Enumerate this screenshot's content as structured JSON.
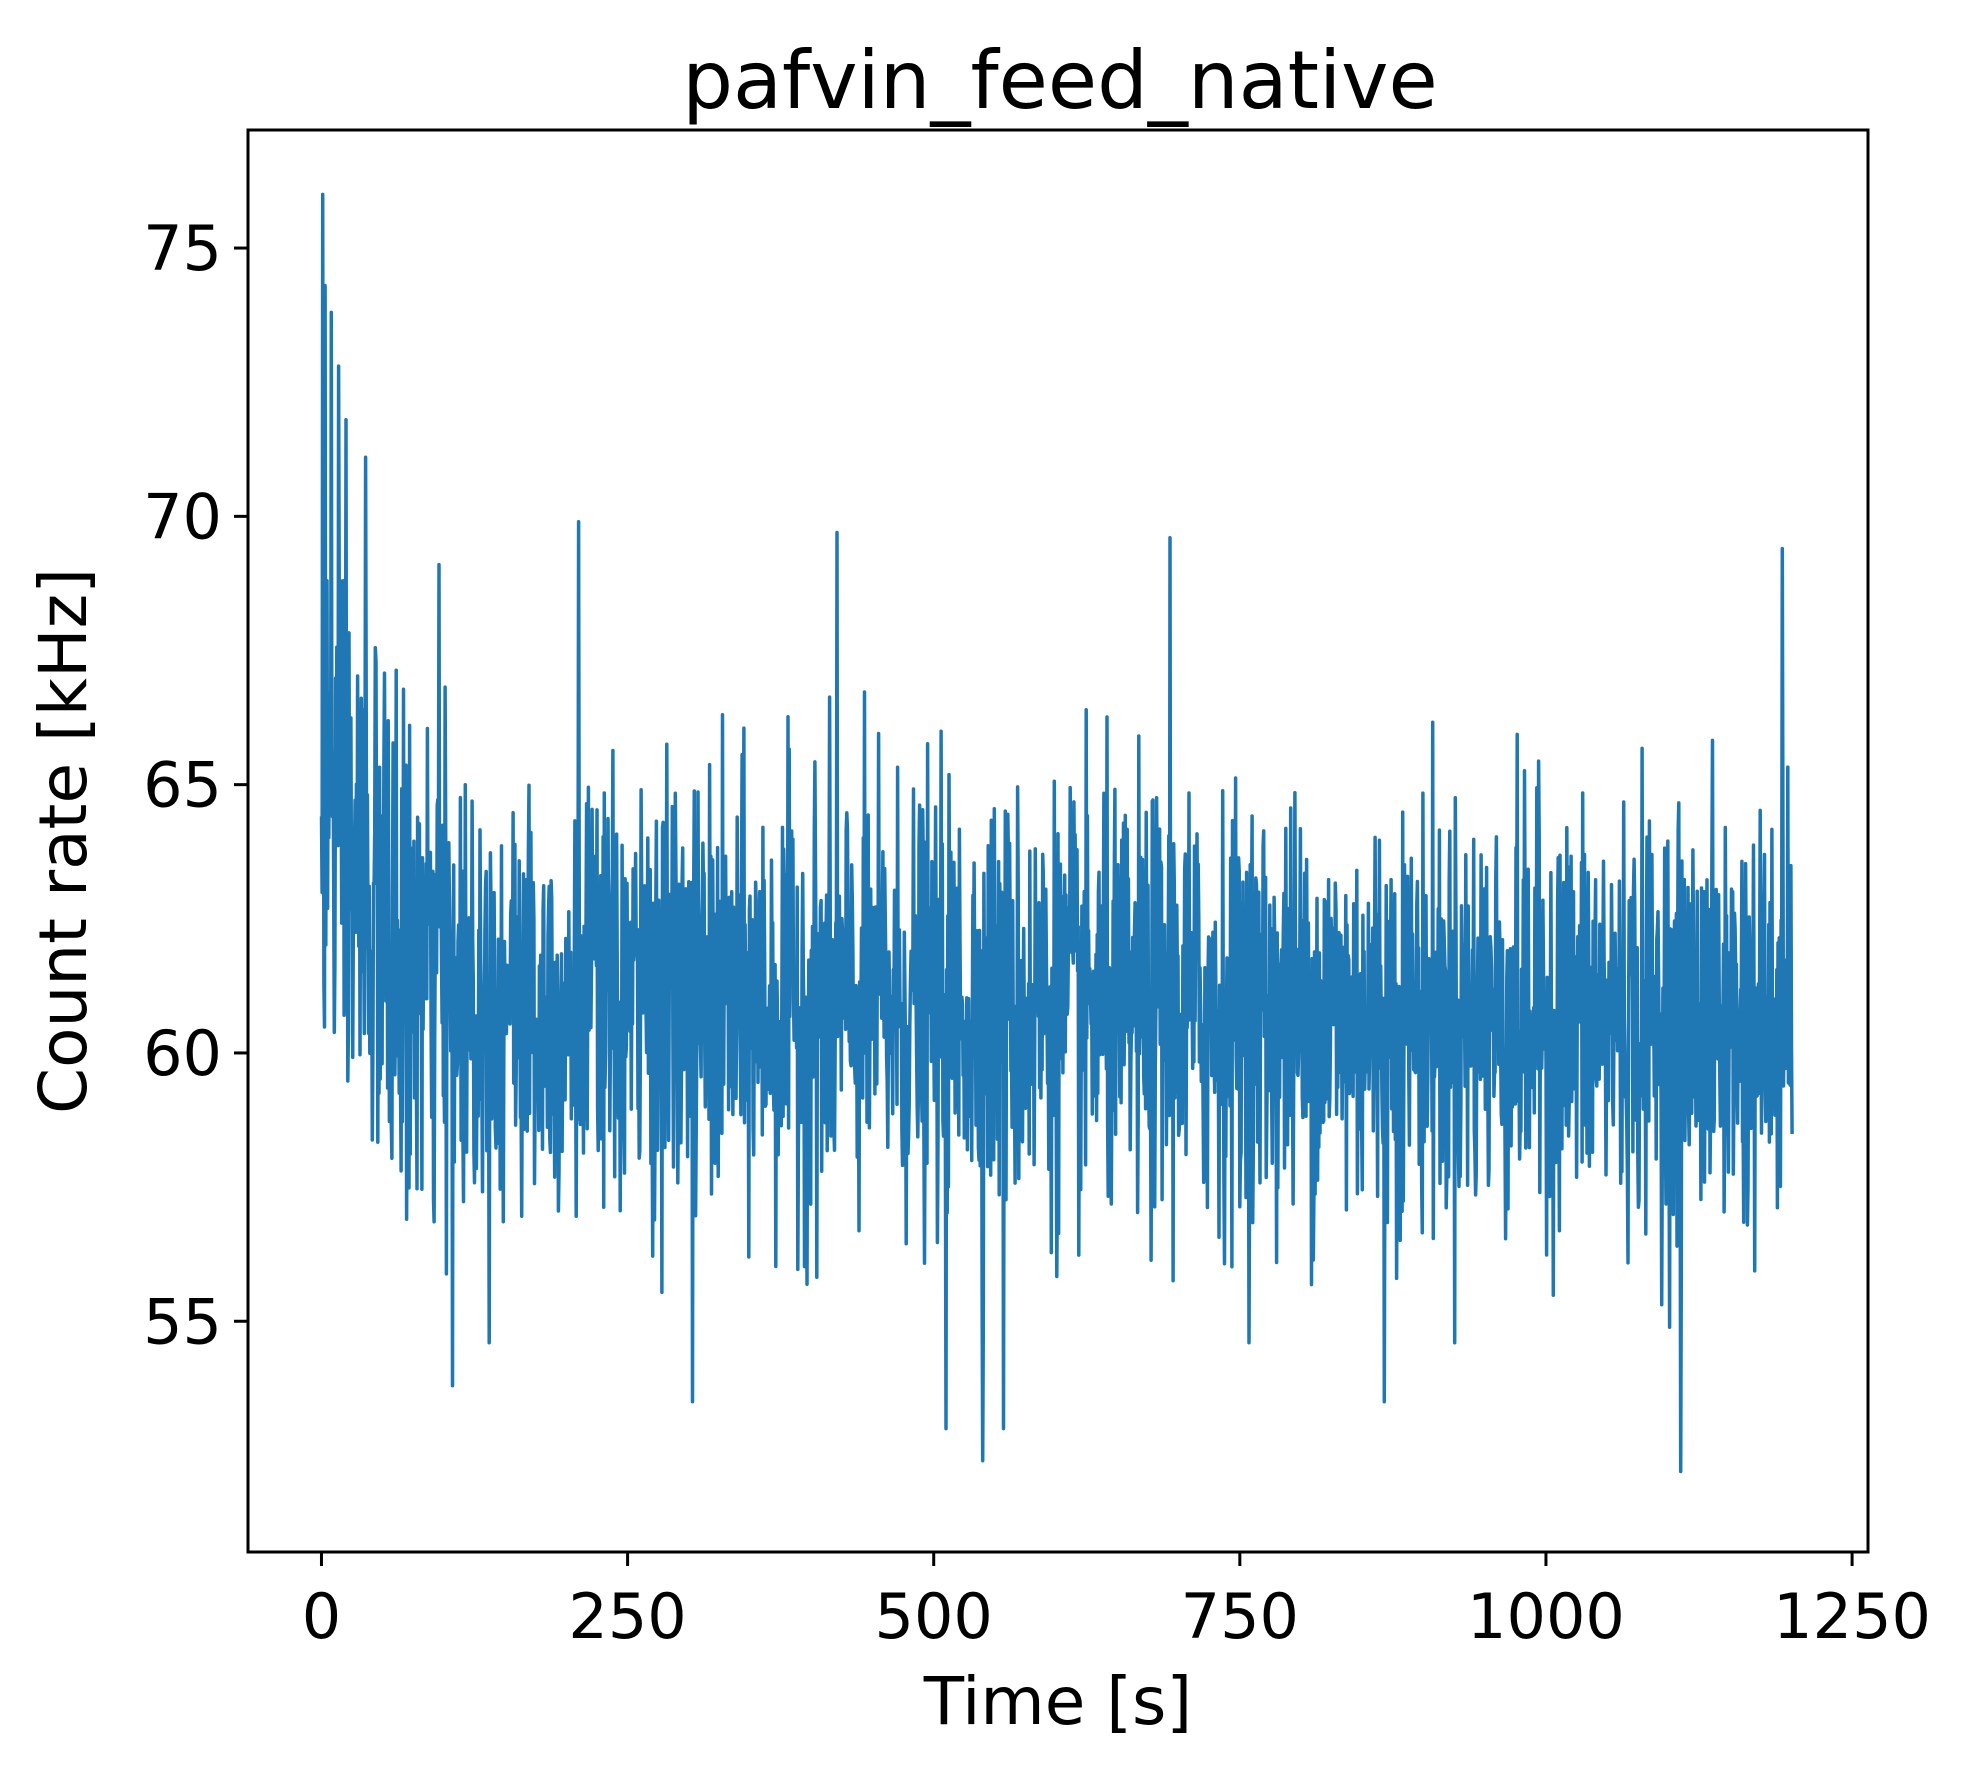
{
  "chart_data": {
    "type": "line",
    "title": "pafvin_feed_native",
    "xlabel": "Time [s]",
    "ylabel": "Count rate [kHz]",
    "xlim": [
      -60,
      1263
    ],
    "ylim": [
      50.7,
      77.2
    ],
    "xticks": [
      0,
      250,
      500,
      750,
      1000,
      1250
    ],
    "yticks": [
      55,
      60,
      65,
      70,
      75
    ],
    "xtick_labels": [
      "0",
      "250",
      "500",
      "750",
      "1000",
      "1250"
    ],
    "ytick_labels": [
      "55",
      "60",
      "65",
      "70",
      "75"
    ],
    "grid": false,
    "legend": "none",
    "series": [
      {
        "color": "#1f77b4",
        "sampling": {
          "x_start": 0,
          "x_end": 1201,
          "step_s": 0.5
        },
        "envelope": {
          "description_points": [
            {
              "x": 0,
              "mean": 65.5,
              "sd": 3.2
            },
            {
              "x": 20,
              "mean": 63.5,
              "sd": 2.8
            },
            {
              "x": 60,
              "mean": 61.8,
              "sd": 2.3
            },
            {
              "x": 120,
              "mean": 61.0,
              "sd": 2.0
            },
            {
              "x": 1201,
              "mean": 60.6,
              "sd": 1.9
            }
          ]
        },
        "extremes": [
          {
            "x": 1,
            "y": 76.0
          },
          {
            "x": 3,
            "y": 74.3
          },
          {
            "x": 8,
            "y": 73.8
          },
          {
            "x": 14,
            "y": 72.8
          },
          {
            "x": 20,
            "y": 71.8
          },
          {
            "x": 36,
            "y": 71.1
          },
          {
            "x": 96,
            "y": 69.1
          },
          {
            "x": 210,
            "y": 69.9
          },
          {
            "x": 421,
            "y": 69.7
          },
          {
            "x": 693,
            "y": 69.6
          },
          {
            "x": 1193,
            "y": 69.4
          },
          {
            "x": 540,
            "y": 52.4
          },
          {
            "x": 1110,
            "y": 52.2
          },
          {
            "x": 557,
            "y": 53.0
          },
          {
            "x": 510,
            "y": 53.0
          },
          {
            "x": 107,
            "y": 53.8
          },
          {
            "x": 303,
            "y": 53.5
          },
          {
            "x": 868,
            "y": 53.5
          }
        ]
      }
    ]
  }
}
